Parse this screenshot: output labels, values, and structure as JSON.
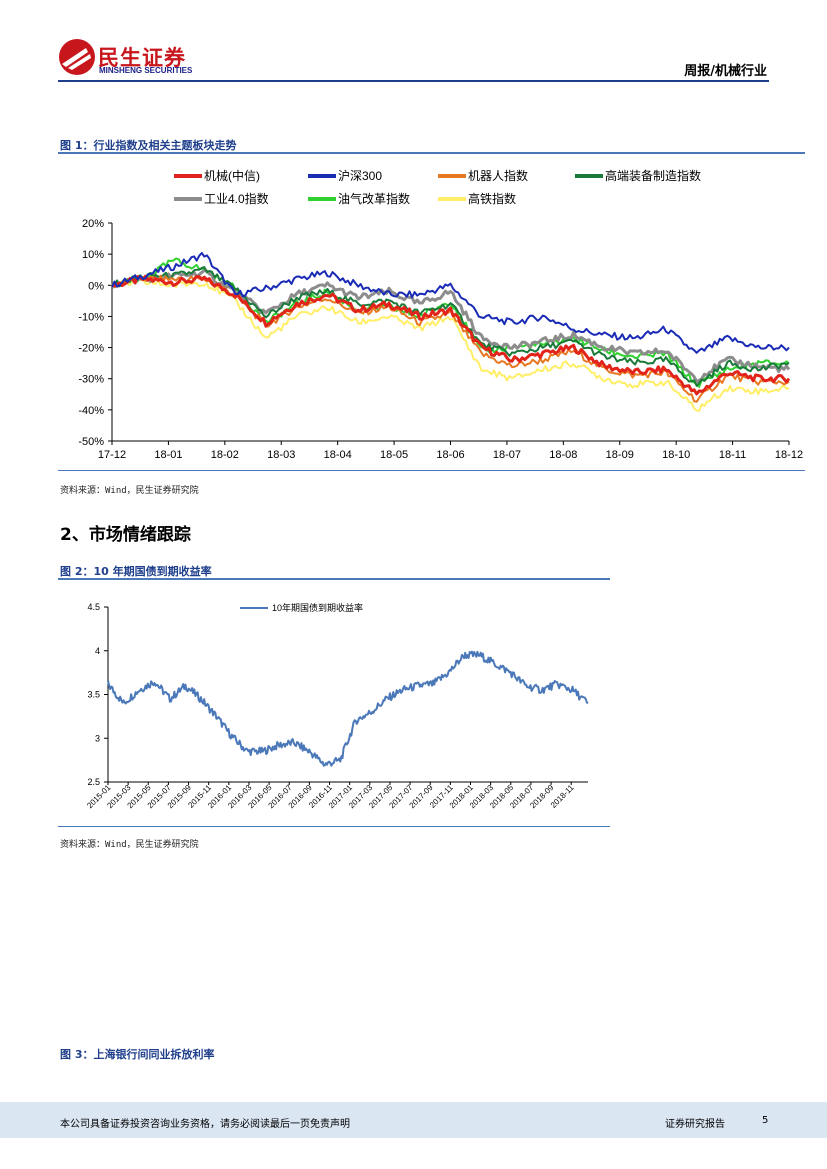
{
  "header": {
    "logo_cn": "民生证券",
    "logo_en": "MINSHENG SECURITIES",
    "report_tag": "周报/机械行业",
    "brand_red": "#c8161d",
    "brand_blue": "#1d2088"
  },
  "figure1": {
    "title": "图 1：行业指数及相关主题板块走势",
    "source": "资料来源：Wind，民生证券研究院",
    "chart_data": {
      "type": "line",
      "title": "行业指数及相关主题板块走势",
      "ylim": [
        -50,
        20
      ],
      "y_ticks": [
        "20%",
        "10%",
        "0%",
        "-10%",
        "-20%",
        "-30%",
        "-40%",
        "-50%"
      ],
      "x_ticks": [
        "17-12",
        "18-01",
        "18-02",
        "18-03",
        "18-04",
        "18-05",
        "18-06",
        "18-07",
        "18-08",
        "18-09",
        "18-10",
        "18-11",
        "18-12"
      ],
      "legend_position": "top",
      "series": [
        {
          "name": "机械(中信)",
          "color": "#e2231a",
          "width": 3,
          "values": [
            0,
            2,
            1,
            2,
            -3,
            -12,
            -6,
            -3,
            -8,
            -6,
            -10,
            -8,
            -20,
            -24,
            -22,
            -20,
            -26,
            -28,
            -27,
            -35,
            -28,
            -30,
            -30
          ]
        },
        {
          "name": "沪深300",
          "color": "#1a2bb5",
          "width": 2,
          "values": [
            0,
            3,
            6,
            10,
            -3,
            -1,
            2,
            4,
            0,
            -3,
            -3,
            0,
            -10,
            -12,
            -10,
            -14,
            -16,
            -17,
            -14,
            -22,
            -17,
            -20,
            -20
          ]
        },
        {
          "name": "机器人指数",
          "color": "#e87722",
          "width": 2,
          "values": [
            0,
            2,
            2,
            2,
            -3,
            -13,
            -7,
            -4,
            -9,
            -7,
            -12,
            -9,
            -22,
            -26,
            -24,
            -21,
            -27,
            -29,
            -28,
            -37,
            -29,
            -31,
            -31
          ]
        },
        {
          "name": "高端装备制造指数",
          "color": "#1a7a3a",
          "width": 2,
          "values": [
            0,
            3,
            3,
            5,
            -1,
            -10,
            -4,
            -2,
            -6,
            -5,
            -9,
            -6,
            -19,
            -22,
            -20,
            -18,
            -23,
            -25,
            -24,
            -32,
            -25,
            -27,
            -25
          ]
        },
        {
          "name": "工业4.0指数",
          "color": "#8c8c8c",
          "width": 3,
          "values": [
            0,
            2,
            3,
            4,
            -2,
            -9,
            -3,
            0,
            -4,
            -2,
            -6,
            -2,
            -17,
            -20,
            -18,
            -16,
            -20,
            -22,
            -21,
            -30,
            -24,
            -26,
            -27
          ]
        },
        {
          "name": "油气改革指数",
          "color": "#2ed12e",
          "width": 2,
          "values": [
            0,
            2,
            8,
            5,
            -1,
            -12,
            -6,
            -2,
            -8,
            -7,
            -10,
            -5,
            -21,
            -20,
            -19,
            -17,
            -21,
            -23,
            -22,
            -32,
            -27,
            -25,
            -25
          ]
        },
        {
          "name": "高铁指数",
          "color": "#ffee66",
          "width": 2,
          "values": [
            0,
            1,
            0,
            1,
            -5,
            -17,
            -10,
            -7,
            -12,
            -10,
            -14,
            -10,
            -27,
            -30,
            -27,
            -25,
            -30,
            -32,
            -31,
            -40,
            -33,
            -34,
            -33
          ]
        }
      ]
    }
  },
  "section": {
    "title": "2、市场情绪跟踪"
  },
  "figure2": {
    "title": "图 2：10 年期国债到期收益率",
    "source": "资料来源：Wind，民生证券研究院",
    "chart_data": {
      "type": "line",
      "ylim": [
        2.5,
        4.5
      ],
      "y_ticks": [
        "4.5",
        "4",
        "3.5",
        "3",
        "2.5"
      ],
      "x_ticks": [
        "2015-01",
        "2015-03",
        "2015-05",
        "2015-07",
        "2015-09",
        "2015-11",
        "2016-01",
        "2016-03",
        "2016-05",
        "2016-07",
        "2016-09",
        "2016-11",
        "2017-01",
        "2017-03",
        "2017-05",
        "2017-07",
        "2017-09",
        "2017-11",
        "2018-01",
        "2018-03",
        "2018-05",
        "2018-07",
        "2018-09",
        "2018-11"
      ],
      "legend_position": "top",
      "series": [
        {
          "name": "10年期国债到期收益率",
          "color": "#4a78b8",
          "values": [
            3.62,
            3.4,
            3.55,
            3.65,
            3.45,
            3.6,
            3.45,
            3.25,
            3.02,
            2.85,
            2.85,
            2.92,
            2.95,
            2.85,
            2.7,
            2.75,
            3.2,
            3.3,
            3.45,
            3.55,
            3.6,
            3.62,
            3.75,
            3.95,
            3.95,
            3.85,
            3.75,
            3.6,
            3.55,
            3.62,
            3.55,
            3.4
          ]
        }
      ]
    }
  },
  "figure3": {
    "title": "图 3：上海银行间同业拆放利率"
  },
  "footer": {
    "disclaimer": "本公司具备证券投资咨询业务资格，请务必阅读最后一页免责声明",
    "doc_type": "证券研究报告",
    "page_number": "5"
  }
}
